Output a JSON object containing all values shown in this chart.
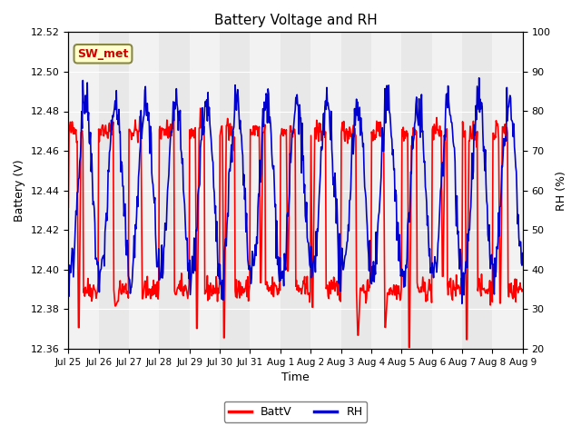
{
  "title": "Battery Voltage and RH",
  "xlabel": "Time",
  "ylabel_left": "Battery (V)",
  "ylabel_right": "RH (%)",
  "left_ylim": [
    12.36,
    12.52
  ],
  "right_ylim": [
    20,
    100
  ],
  "left_yticks": [
    12.36,
    12.38,
    12.4,
    12.42,
    12.44,
    12.46,
    12.48,
    12.5,
    12.52
  ],
  "right_yticks": [
    20,
    30,
    40,
    50,
    60,
    70,
    80,
    90,
    100
  ],
  "xtick_labels": [
    "Jul 25",
    "Jul 26",
    "Jul 27",
    "Jul 28",
    "Jul 29",
    "Jul 30",
    "Jul 31",
    "Aug 1",
    "Aug 2",
    "Aug 3",
    "Aug 4",
    "Aug 5",
    "Aug 6",
    "Aug 7",
    "Aug 8",
    "Aug 9"
  ],
  "battv_color": "#FF0000",
  "rh_color": "#0000CC",
  "legend_label_battv": "BattV",
  "legend_label_rh": "RH",
  "station_label": "SW_met",
  "station_label_color": "#CC0000",
  "station_box_facecolor": "#FFFFCC",
  "station_box_edgecolor": "#888844",
  "bg_color": "#FFFFFF",
  "plot_bg_color": "#E8E8E8",
  "grid_color": "#FFFFFF",
  "n_days": 15,
  "pts_per_day": 48
}
